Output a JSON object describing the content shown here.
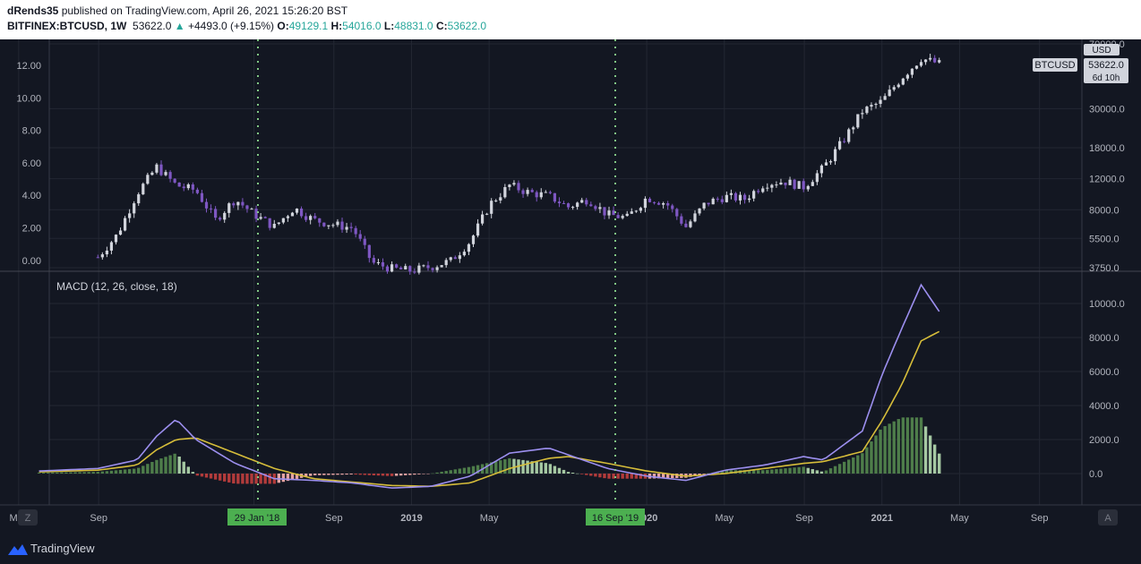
{
  "header": {
    "author": "dRends35",
    "published": "published on TradingView.com, April 26, 2021 15:26:20 BST",
    "symbol_line": "BITFINEX:BTCUSD, 1W",
    "last": "53622.0",
    "change": "+4493.0 (+9.15%)",
    "open_label": "O:",
    "open": "49129.1",
    "high_label": "H:",
    "high": "54016.0",
    "low_label": "L:",
    "low": "48831.0",
    "close_label": "C:",
    "close": "53622.0"
  },
  "price_panel": {
    "left_ticks": [
      "12.00",
      "10.00",
      "8.00",
      "6.00",
      "4.00",
      "2.00",
      "0.00"
    ],
    "right_ticks": [
      "70000.0",
      "30000.0",
      "18000.0",
      "12000.0",
      "8000.0",
      "5500.0",
      "3750.0"
    ],
    "currency": "USD",
    "symbol_tag": "BTCUSD",
    "price_tag": "53622.0",
    "countdown": "6d 10h"
  },
  "macd_panel": {
    "label": "MACD (12, 26, close, 18)",
    "right_ticks": [
      "10000.0",
      "8000.0",
      "6000.0",
      "4000.0",
      "2000.0",
      "0.0"
    ]
  },
  "time_axis": {
    "labels": [
      "May",
      "Sep",
      "May",
      "Sep",
      "2019",
      "May",
      "2020",
      "May",
      "Sep",
      "2021",
      "May",
      "Sep"
    ],
    "markers": [
      "29 Jan '18",
      "16 Sep '19"
    ]
  },
  "footer": {
    "brand": "TradingView",
    "z_button": "Z",
    "a_button": "A"
  },
  "colors": {
    "up": "#d1d4dc",
    "down": "#7e57c2",
    "macd": "#9c8fef",
    "signal": "#d6bd3a",
    "hist_pos": "#6f9e6b",
    "hist_neg": "#c0504d",
    "marker": "#81c784"
  },
  "chart_data": [
    {
      "type": "candlestick",
      "title": "BITFINEX:BTCUSD, 1W",
      "ylabel": "USD",
      "scale": "log",
      "ylim": [
        3750,
        70000
      ],
      "x": [
        "2017-09",
        "2017-10",
        "2017-11",
        "2017-12",
        "2018-01",
        "2018-02",
        "2018-03",
        "2018-04",
        "2018-05",
        "2018-06",
        "2018-07",
        "2018-08",
        "2018-09",
        "2018-10",
        "2018-11",
        "2018-12",
        "2019-01",
        "2019-02",
        "2019-03",
        "2019-04",
        "2019-05",
        "2019-06",
        "2019-07",
        "2019-08",
        "2019-09",
        "2019-10",
        "2019-11",
        "2019-12",
        "2020-01",
        "2020-02",
        "2020-03",
        "2020-04",
        "2020-05",
        "2020-06",
        "2020-07",
        "2020-08",
        "2020-09",
        "2020-10",
        "2020-11",
        "2020-12",
        "2021-01",
        "2021-02",
        "2021-03",
        "2021-04"
      ],
      "close": [
        4300,
        5800,
        9900,
        14000,
        11000,
        10300,
        7000,
        9200,
        7500,
        6400,
        8200,
        7000,
        6600,
        6300,
        4000,
        3700,
        3600,
        3800,
        4100,
        5300,
        8600,
        11000,
        10000,
        9600,
        8300,
        9200,
        7500,
        7200,
        9400,
        8700,
        6400,
        8700,
        9500,
        9200,
        11300,
        11600,
        10800,
        13800,
        19600,
        29000,
        33000,
        45000,
        58000,
        53622
      ]
    },
    {
      "type": "line",
      "title": "MACD (12, 26, close, 18)",
      "ylim": [
        -1300,
        11500
      ],
      "x": [
        "2017-06",
        "2017-09",
        "2017-11",
        "2017-12",
        "2018-01",
        "2018-02",
        "2018-04",
        "2018-06",
        "2018-08",
        "2018-10",
        "2018-12",
        "2019-02",
        "2019-04",
        "2019-06",
        "2019-08",
        "2019-09",
        "2019-11",
        "2020-01",
        "2020-03",
        "2020-05",
        "2020-07",
        "2020-09",
        "2020-10",
        "2020-12",
        "2021-01",
        "2021-02",
        "2021-03",
        "2021-04"
      ],
      "series": [
        {
          "name": "MACD",
          "values": [
            150,
            300,
            800,
            2200,
            3200,
            2000,
            600,
            -300,
            -400,
            -550,
            -850,
            -750,
            -150,
            1200,
            1500,
            1100,
            300,
            -150,
            -400,
            200,
            500,
            1000,
            800,
            2500,
            5800,
            8500,
            11100,
            9400
          ]
        },
        {
          "name": "Signal",
          "values": [
            100,
            200,
            500,
            1400,
            2000,
            2100,
            1200,
            300,
            -300,
            -500,
            -700,
            -750,
            -550,
            300,
            900,
            1000,
            600,
            150,
            -150,
            0,
            300,
            600,
            700,
            1300,
            3100,
            5200,
            7800,
            8400
          ]
        },
        {
          "name": "Histogram",
          "values": [
            50,
            100,
            300,
            800,
            1200,
            -100,
            -600,
            -600,
            -100,
            -50,
            -150,
            0,
            400,
            900,
            600,
            100,
            -300,
            -300,
            -250,
            200,
            200,
            400,
            100,
            1200,
            2700,
            3300,
            3300,
            1000
          ]
        }
      ]
    }
  ]
}
